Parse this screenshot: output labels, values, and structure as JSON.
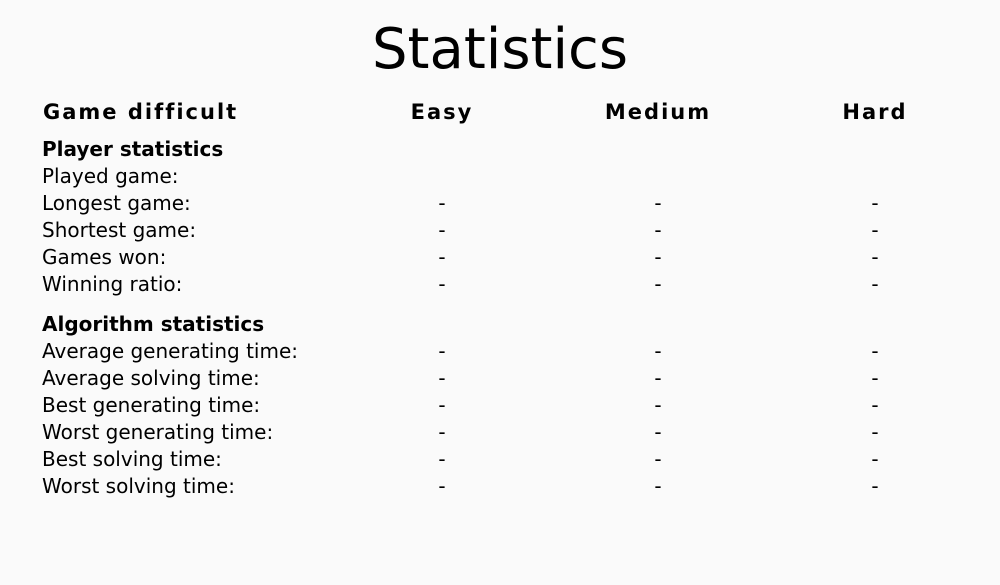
{
  "title": "Statistics",
  "header": {
    "first": "Game difficult",
    "columns": [
      "Easy",
      "Medium",
      "Hard"
    ]
  },
  "player": {
    "title": "Player statistics",
    "rows": [
      {
        "label": "Played game:",
        "values": [
          "",
          "",
          ""
        ]
      },
      {
        "label": "Longest game:",
        "values": [
          "-",
          "-",
          "-"
        ]
      },
      {
        "label": "Shortest game:",
        "values": [
          "-",
          "-",
          "-"
        ]
      },
      {
        "label": "Games won:",
        "values": [
          "-",
          "-",
          "-"
        ]
      },
      {
        "label": "Winning ratio:",
        "values": [
          "-",
          "-",
          "-"
        ]
      }
    ]
  },
  "algorithm": {
    "title": "Algorithm statistics",
    "rows": [
      {
        "label": "Average generating time:",
        "values": [
          "-",
          "-",
          "-"
        ]
      },
      {
        "label": "Average solving time:",
        "values": [
          "-",
          "-",
          "-"
        ]
      },
      {
        "label": "Best generating time:",
        "values": [
          "-",
          "-",
          "-"
        ]
      },
      {
        "label": "Worst generating time:",
        "values": [
          "-",
          "-",
          "-"
        ]
      },
      {
        "label": "Best solving time:",
        "values": [
          "-",
          "-",
          "-"
        ]
      },
      {
        "label": "Worst solving time:",
        "values": [
          "-",
          "-",
          "-"
        ]
      }
    ]
  }
}
